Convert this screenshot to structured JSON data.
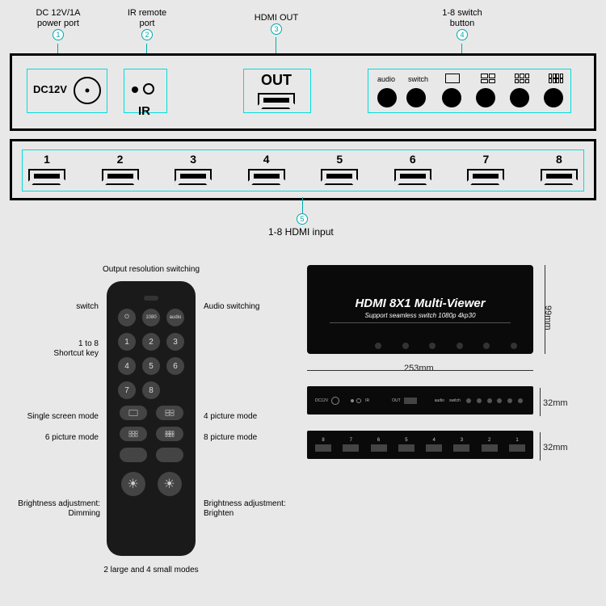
{
  "callouts": {
    "top": {
      "dc": {
        "num": "1",
        "label": "DC 12V/1A\npower port"
      },
      "ir": {
        "num": "2",
        "label": "IR remote\nport"
      },
      "out": {
        "num": "3",
        "label": "HDMI OUT"
      },
      "sw": {
        "num": "4",
        "label": "1-8 switch\nbutton"
      }
    },
    "bottom": {
      "num": "5",
      "label": "1-8 HDMI input"
    }
  },
  "panel1": {
    "dc_label": "DC12V",
    "out_label": "OUT",
    "ir_label": "IR",
    "btn_labels": [
      "audio",
      "switch"
    ]
  },
  "panel2": {
    "ports": [
      "1",
      "2",
      "3",
      "4",
      "5",
      "6",
      "7",
      "8"
    ]
  },
  "remote": {
    "top_row": [
      "1080",
      "audio"
    ],
    "nums": [
      "1",
      "2",
      "3",
      "4",
      "5",
      "6",
      "7",
      "8"
    ],
    "labels": {
      "switch": "switch",
      "resolution": "Output resolution switching",
      "audio": "Audio switching",
      "shortcut": "1 to 8\nShortcut key",
      "single": "Single screen mode",
      "six": "6 picture mode",
      "four": "4 picture mode",
      "eight": "8 picture mode",
      "dim": "Brightness adjustment:\nDimming",
      "bright": "Brightness adjustment:\nBrighten",
      "bottom": "2 large and 4 small modes"
    }
  },
  "device": {
    "title": "HDMI 8X1 Multi-Viewer",
    "subtitle": "Support seamless switch 1080p 4kp30",
    "width_dim": "253mm",
    "height_dim": "99mm",
    "strip1_h": "32mm",
    "strip2_h": "32mm",
    "strip1_labels": {
      "dc": "DC12V",
      "ir": "IR",
      "out": "OUT",
      "audio": "audio",
      "switch": "switch"
    },
    "strip2_ports": [
      "8",
      "7",
      "6",
      "5",
      "4",
      "3",
      "2",
      "1"
    ]
  },
  "colors": {
    "callout": "#00aaaa",
    "panel_border": "#000000",
    "bg": "#e8e8e8"
  }
}
